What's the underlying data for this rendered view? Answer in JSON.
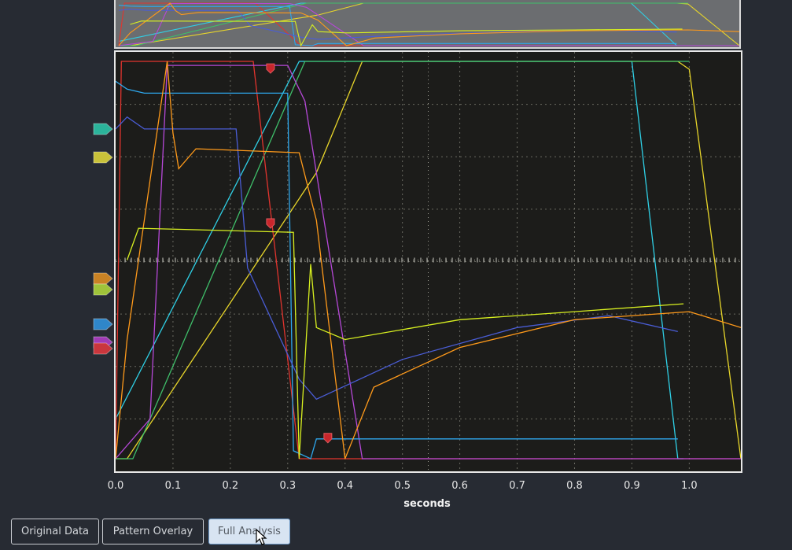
{
  "x_axis": {
    "label": "seconds",
    "ticks": [
      "0.0",
      "0.1",
      "0.2",
      "0.3",
      "0.4",
      "0.5",
      "0.6",
      "0.7",
      "0.8",
      "0.9",
      "1.0"
    ]
  },
  "buttons": [
    {
      "label": "Original Data",
      "active": false
    },
    {
      "label": "Pattern Overlay",
      "active": false
    },
    {
      "label": "Full Analysis",
      "active": true
    }
  ],
  "channel_markers": [
    {
      "name": "teal",
      "color": "#2bb39b"
    },
    {
      "name": "yellow",
      "color": "#c9c23a"
    },
    {
      "name": "orange",
      "color": "#c98224"
    },
    {
      "name": "lime",
      "color": "#9fc33a"
    },
    {
      "name": "blue",
      "color": "#2f86c9"
    },
    {
      "name": "purple",
      "color": "#a03bb5"
    },
    {
      "name": "red",
      "color": "#c9363d"
    }
  ],
  "chart_data": {
    "type": "line",
    "xlabel": "seconds",
    "xlim": [
      0.0,
      1.09
    ],
    "ylim": [
      0,
      1
    ],
    "grid": true,
    "series": [
      {
        "color": "#e8d62a",
        "x": [
          0.0,
          0.02,
          0.35,
          0.43,
          0.98,
          1.0,
          1.09
        ],
        "y": [
          0.0,
          0.0,
          0.72,
          1.0,
          1.0,
          0.98,
          0.0
        ]
      },
      {
        "color": "#2fd0e6",
        "x": [
          0.0,
          0.32,
          0.34,
          0.9,
          0.98,
          0.99
        ],
        "y": [
          0.1,
          1.0,
          1.0,
          1.0,
          0.0,
          0.0
        ]
      },
      {
        "color": "#3fbf6a",
        "x": [
          0.0,
          0.03,
          0.33,
          0.36,
          1.0
        ],
        "y": [
          0.0,
          0.0,
          1.0,
          1.0,
          1.0
        ]
      },
      {
        "color": "#e2342e",
        "x": [
          0.0,
          0.01,
          0.1,
          0.24,
          0.32,
          1.09
        ],
        "y": [
          0.0,
          1.0,
          1.0,
          1.0,
          0.0,
          0.0
        ]
      },
      {
        "color": "#b648d8",
        "x": [
          0.0,
          0.06,
          0.09,
          0.13,
          0.3,
          0.33,
          0.43,
          1.09
        ],
        "y": [
          0.0,
          0.1,
          0.99,
          0.99,
          0.99,
          0.9,
          0.0,
          0.0
        ]
      },
      {
        "color": "#2ea8ee",
        "x": [
          0.0,
          0.02,
          0.05,
          0.3,
          0.31,
          0.34,
          0.35,
          0.98
        ],
        "y": [
          0.95,
          0.93,
          0.92,
          0.92,
          0.02,
          0.0,
          0.05,
          0.05
        ]
      },
      {
        "color": "#4a5dd6",
        "x": [
          0.0,
          0.02,
          0.05,
          0.21,
          0.23,
          0.32,
          0.35,
          0.5,
          0.7,
          0.86,
          0.98
        ],
        "y": [
          0.83,
          0.86,
          0.83,
          0.83,
          0.48,
          0.2,
          0.15,
          0.25,
          0.33,
          0.36,
          0.32
        ]
      },
      {
        "color": "#ff9a1a",
        "x": [
          0.0,
          0.02,
          0.09,
          0.1,
          0.11,
          0.14,
          0.32,
          0.35,
          0.4,
          0.45,
          0.6,
          0.8,
          1.0,
          1.09
        ],
        "y": [
          0.0,
          0.3,
          1.0,
          0.82,
          0.73,
          0.78,
          0.77,
          0.6,
          0.0,
          0.18,
          0.28,
          0.35,
          0.37,
          0.33
        ]
      },
      {
        "color": "#d8f020",
        "x": [
          0.02,
          0.04,
          0.31,
          0.32,
          0.34,
          0.35,
          0.4,
          0.6,
          0.8,
          0.99
        ],
        "y": [
          0.5,
          0.58,
          0.57,
          0.0,
          0.49,
          0.33,
          0.3,
          0.35,
          0.37,
          0.39
        ]
      }
    ]
  }
}
